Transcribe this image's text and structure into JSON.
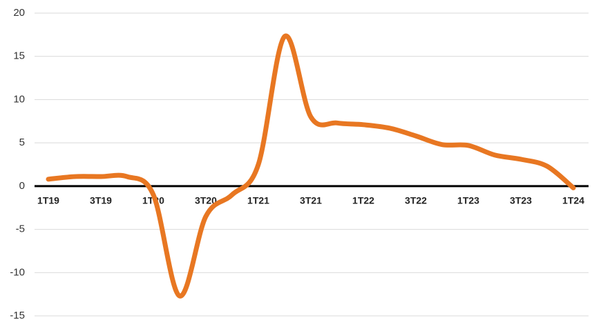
{
  "chart_data": {
    "type": "line",
    "categories": [
      "1T19",
      null,
      "3T19",
      null,
      "1T20",
      null,
      "3T20",
      null,
      "1T21",
      null,
      "3T21",
      null,
      "1T22",
      null,
      "3T22",
      null,
      "1T23",
      null,
      "3T23",
      null,
      "1T24"
    ],
    "series": [
      {
        "color": "#e87722",
        "values": [
          0.8,
          1.1,
          1.1,
          1.1,
          -1,
          -12.7,
          -3.5,
          -1,
          2.5,
          17.3,
          8,
          7.3,
          7.1,
          6.7,
          5.8,
          4.8,
          4.7,
          3.6,
          3.1,
          2.3,
          -0.2
        ]
      }
    ],
    "ylim": [
      -15,
      20
    ],
    "yticks": [
      -15,
      -10,
      -5,
      0,
      5,
      10,
      15,
      20
    ],
    "grid": true
  }
}
